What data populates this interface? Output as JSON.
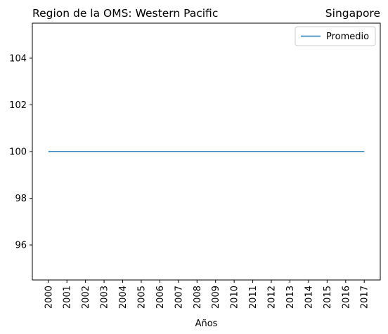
{
  "chart_data": {
    "type": "line",
    "title_left": "Region de la OMS: Western Pacific",
    "title_right": "Singapore",
    "xlabel": "Años",
    "ylabel": "",
    "x": [
      "2000",
      "2001",
      "2002",
      "2003",
      "2004",
      "2005",
      "2006",
      "2007",
      "2008",
      "2009",
      "2010",
      "2011",
      "2012",
      "2013",
      "2014",
      "2015",
      "2016",
      "2017"
    ],
    "series": [
      {
        "name": "Promedio",
        "color": "#1f77b4",
        "values": [
          100,
          100,
          100,
          100,
          100,
          100,
          100,
          100,
          100,
          100,
          100,
          100,
          100,
          100,
          100,
          100,
          100,
          100
        ]
      }
    ],
    "ylim": [
      94.5,
      105.5
    ],
    "yticks": [
      "96",
      "98",
      "100",
      "102",
      "104"
    ],
    "grid": false,
    "legend_position": "top-right"
  }
}
